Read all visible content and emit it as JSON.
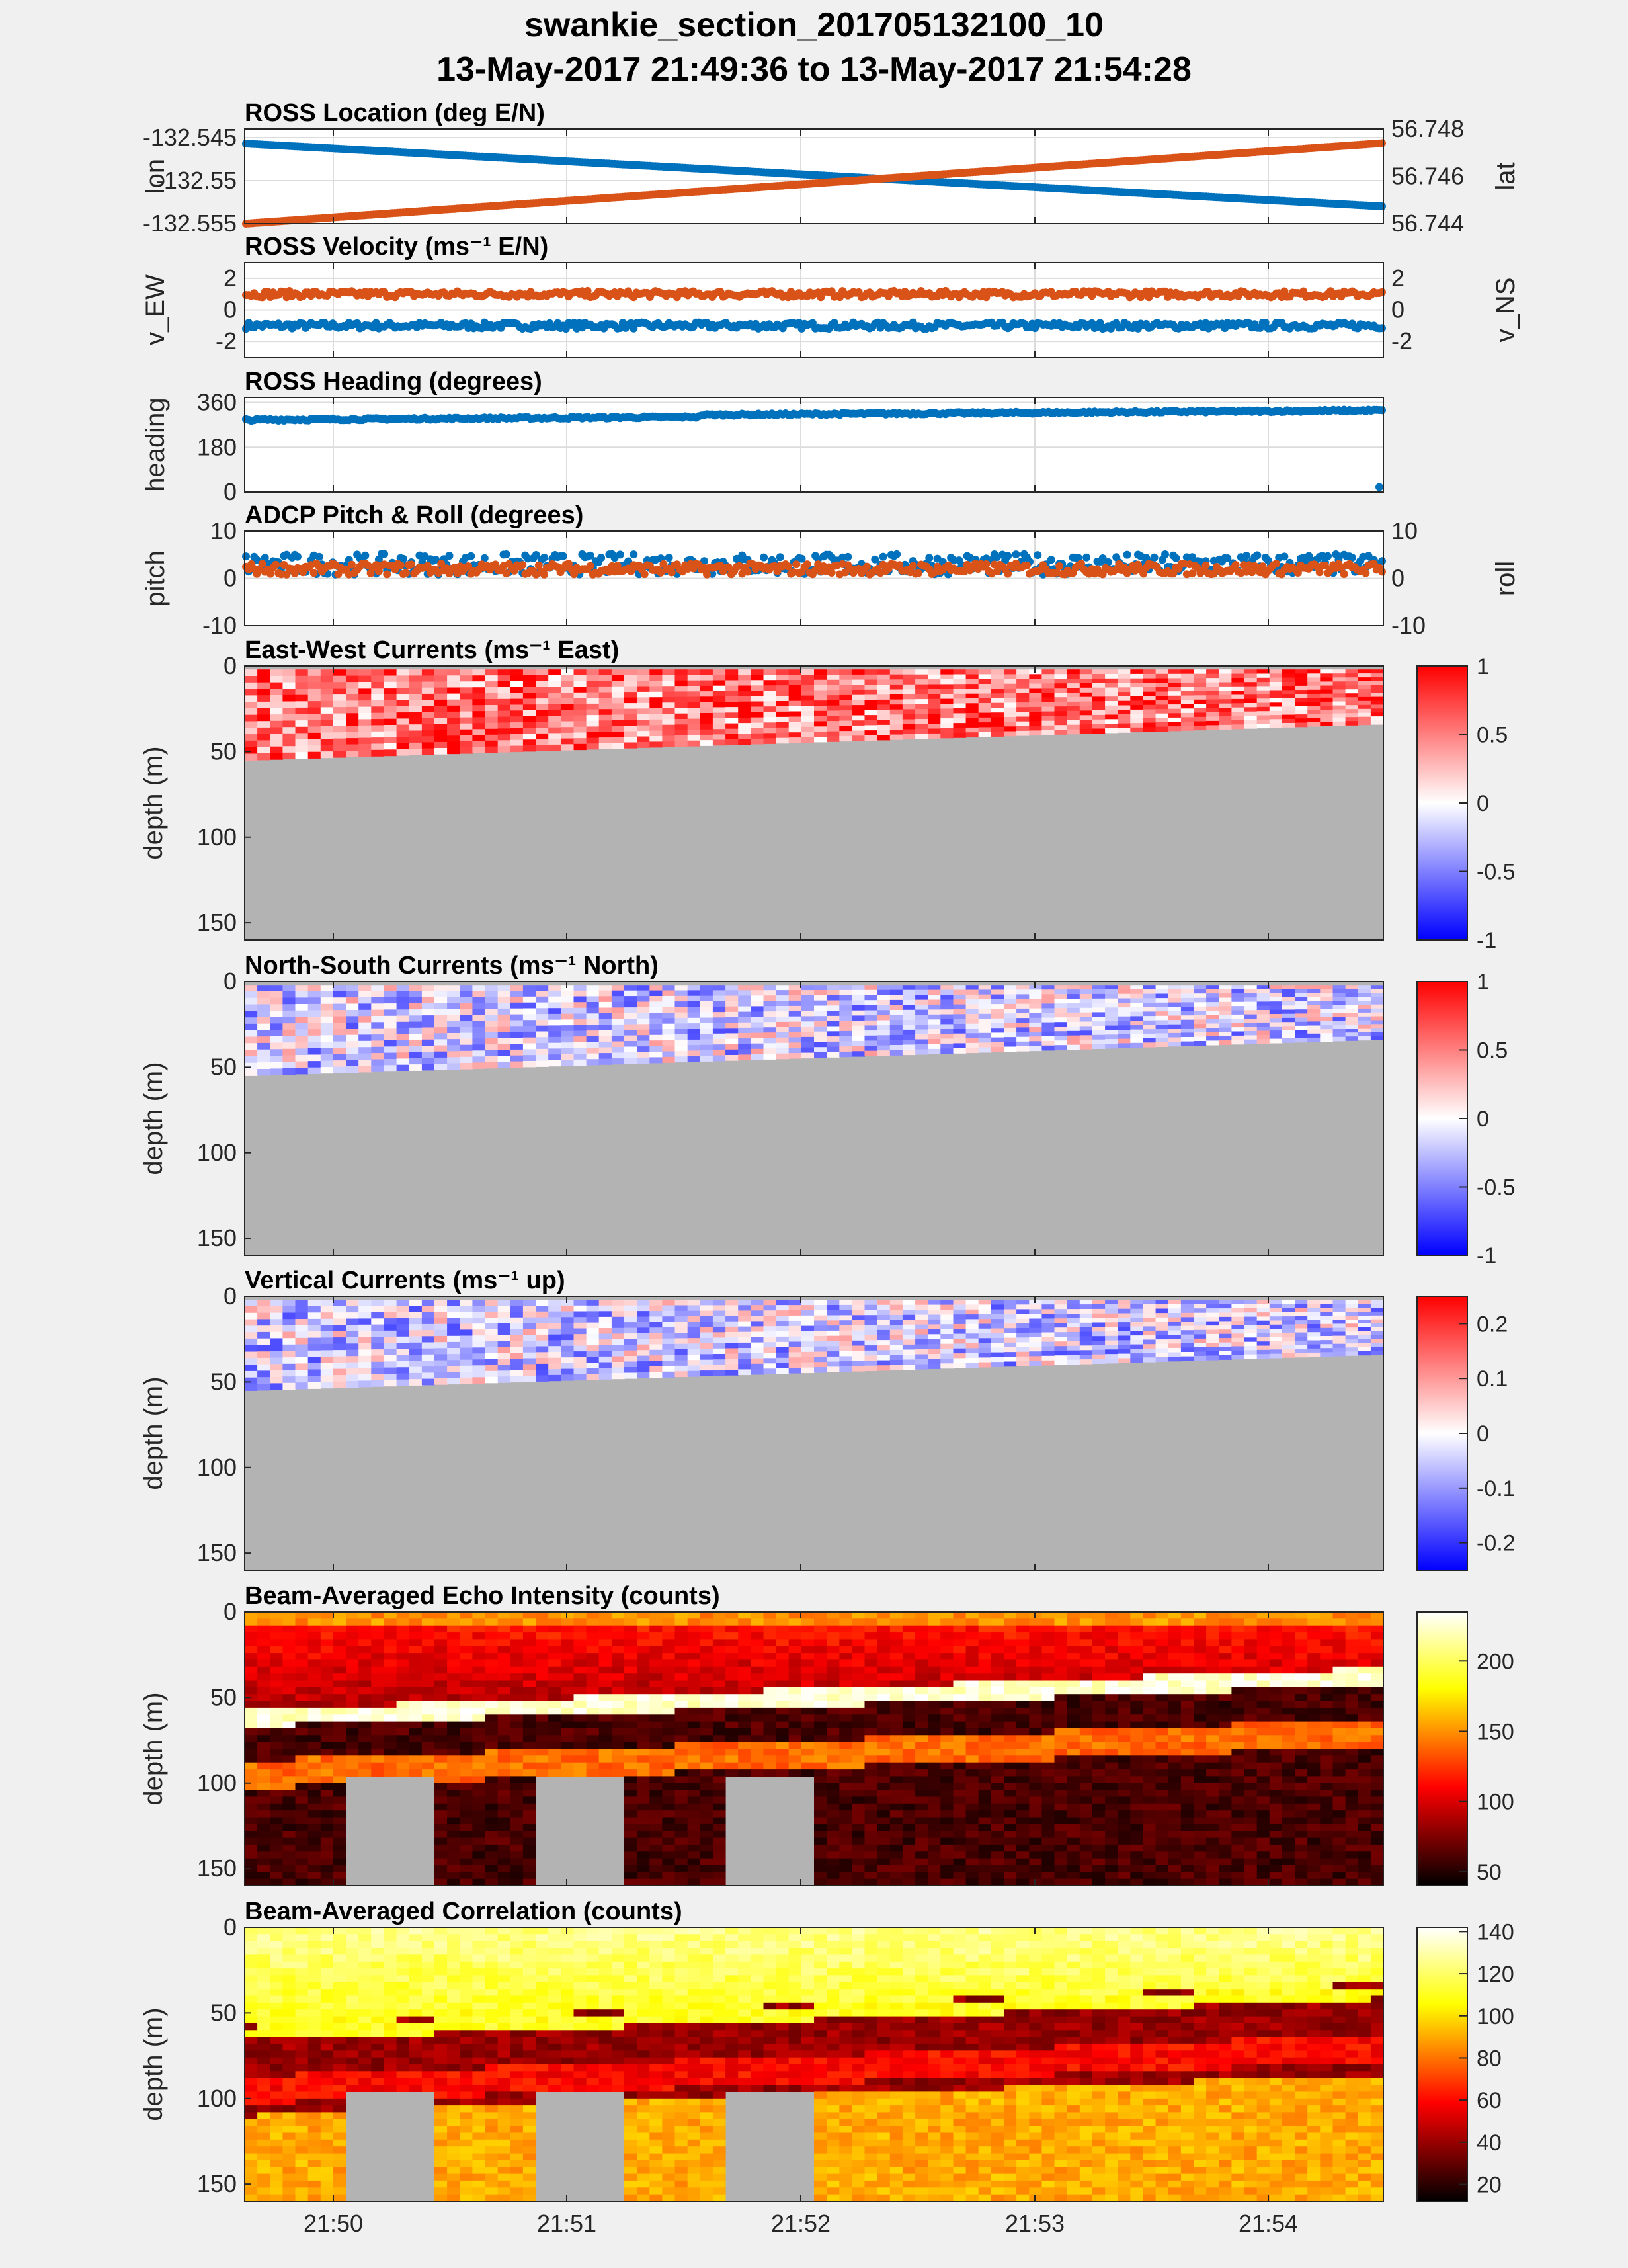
{
  "figure": {
    "title_line1": "swankie_section_201705132100_10",
    "title_line2": "13-May-2017 21:49:36 to 13-May-2017 21:54:28",
    "time_ticks": [
      "21:50",
      "21:51",
      "21:52",
      "21:53",
      "21:54"
    ],
    "colors": {
      "blue": "#0072BD",
      "orange": "#D95319",
      "gray": "#b3b3b3",
      "background": "#f0f0f0"
    }
  },
  "chart_data": [
    {
      "type": "scatter",
      "title": "ROSS Location (deg E/N)",
      "ylabel_left": "lon",
      "ylabel_right": "lat",
      "left_ticks": [
        "-132.545",
        "-132.55",
        "-132.555"
      ],
      "right_ticks": [
        "56.748",
        "56.746",
        "56.744"
      ],
      "ylim_left": [
        -132.555,
        -132.544
      ],
      "ylim_right": [
        56.744,
        56.748
      ],
      "series": [
        {
          "name": "lon",
          "axis": "left",
          "color": "#0072BD",
          "start": -132.5457,
          "end": -132.553
        },
        {
          "name": "lat",
          "axis": "right",
          "color": "#D95319",
          "start": 56.744,
          "end": 56.7474
        }
      ]
    },
    {
      "type": "scatter",
      "title": "ROSS Velocity (ms⁻¹ E/N)",
      "ylabel_left": "v_EW",
      "ylabel_right": "v_NS",
      "left_ticks": [
        "2",
        "0",
        "-2"
      ],
      "right_ticks": [
        "2",
        "0",
        "-2"
      ],
      "ylim_left": [
        -3,
        3
      ],
      "ylim_right": [
        -3,
        3
      ],
      "series": [
        {
          "name": "v_EW",
          "axis": "left",
          "color": "#0072BD",
          "mean": -1.0,
          "noise": 0.2
        },
        {
          "name": "v_NS",
          "axis": "right",
          "color": "#D95319",
          "mean": 1.0,
          "noise": 0.2
        }
      ]
    },
    {
      "type": "scatter",
      "title": "ROSS Heading (degrees)",
      "ylabel_left": "heading",
      "left_ticks": [
        "360",
        "180",
        "0"
      ],
      "ylim_left": [
        0,
        380
      ],
      "series": [
        {
          "name": "heading",
          "axis": "left",
          "color": "#0072BD",
          "start": 290,
          "end": 320
        }
      ]
    },
    {
      "type": "scatter",
      "title": "ADCP Pitch & Roll (degrees)",
      "ylabel_left": "pitch",
      "ylabel_right": "roll",
      "left_ticks": [
        "10",
        "0",
        "-10"
      ],
      "right_ticks": [
        "10",
        "0",
        "-10"
      ],
      "ylim_left": [
        -10,
        10
      ],
      "ylim_right": [
        -10,
        10
      ],
      "series": [
        {
          "name": "pitch",
          "axis": "left",
          "color": "#0072BD",
          "mean": 3,
          "noise": 2.2
        },
        {
          "name": "roll",
          "axis": "right",
          "color": "#D95319",
          "mean": 2,
          "noise": 1.2
        }
      ]
    },
    {
      "type": "heatmap",
      "title": "East-West Currents (ms⁻¹ East)",
      "ylabel": "depth (m)",
      "y_ticks": [
        "0",
        "50",
        "100",
        "150"
      ],
      "ylim": [
        0,
        160
      ],
      "colormap": "redblue",
      "clim": [
        -1,
        1
      ],
      "colorbar_ticks": [
        "1",
        "0.5",
        "0",
        "-0.5",
        "-1"
      ],
      "bottom_depth_m": [
        55,
        34
      ],
      "mean_value": 0.55
    },
    {
      "type": "heatmap",
      "title": "North-South Currents (ms⁻¹ North)",
      "ylabel": "depth (m)",
      "y_ticks": [
        "0",
        "50",
        "100",
        "150"
      ],
      "ylim": [
        0,
        160
      ],
      "colormap": "redblue",
      "clim": [
        -1,
        1
      ],
      "colorbar_ticks": [
        "1",
        "0.5",
        "0",
        "-0.5",
        "-1"
      ],
      "bottom_depth_m": [
        55,
        34
      ],
      "mean_value": -0.15
    },
    {
      "type": "heatmap",
      "title": "Vertical Currents (ms⁻¹ up)",
      "ylabel": "depth (m)",
      "y_ticks": [
        "0",
        "50",
        "100",
        "150"
      ],
      "ylim": [
        0,
        160
      ],
      "colormap": "redblue",
      "clim": [
        -0.25,
        0.25
      ],
      "colorbar_ticks": [
        "0.2",
        "0.1",
        "0",
        "-0.1",
        "-0.2"
      ],
      "bottom_depth_m": [
        55,
        34
      ],
      "mean_value": -0.04
    },
    {
      "type": "heatmap",
      "title": "Beam-Averaged Echo Intensity (counts)",
      "ylabel": "depth (m)",
      "y_ticks": [
        "0",
        "50",
        "100",
        "150"
      ],
      "ylim": [
        0,
        160
      ],
      "colormap": "hot",
      "clim": [
        40,
        235
      ],
      "colorbar_ticks": [
        "200",
        "150",
        "100",
        "50"
      ],
      "colorbar_tick_values": [
        200,
        150,
        100,
        50
      ],
      "bottom_depth_m": [
        60,
        36
      ]
    },
    {
      "type": "heatmap",
      "title": "Beam-Averaged Correlation (counts)",
      "ylabel": "depth (m)",
      "y_ticks": [
        "0",
        "50",
        "100",
        "150"
      ],
      "ylim": [
        0,
        160
      ],
      "colormap": "hot",
      "clim": [
        12,
        142
      ],
      "colorbar_ticks": [
        "140",
        "120",
        "100",
        "80",
        "60",
        "40",
        "20"
      ],
      "colorbar_tick_values": [
        140,
        120,
        100,
        80,
        60,
        40,
        20
      ],
      "bottom_depth_m": [
        60,
        36
      ]
    }
  ]
}
